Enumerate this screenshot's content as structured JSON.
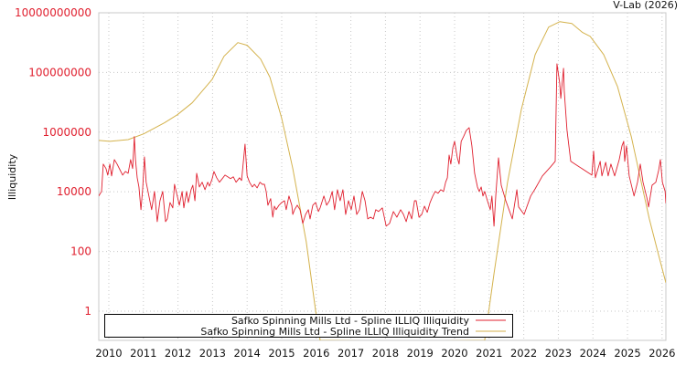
{
  "chart_data": {
    "type": "line",
    "title": "",
    "credit": "V-Lab (2026)",
    "xlabel": "",
    "ylabel": "Illiquidity",
    "y_scale": "log",
    "y_values_are_log10": true,
    "xlim": [
      2009.71,
      2026.11
    ],
    "ylim_log10": [
      -0.98,
      10
    ],
    "grid": true,
    "legend_position": "bottom-left",
    "x_ticks": [
      2010,
      2011,
      2012,
      2013,
      2014,
      2015,
      2016,
      2017,
      2018,
      2019,
      2020,
      2021,
      2022,
      2023,
      2024,
      2025,
      2026
    ],
    "y_ticks": [
      "10000000000",
      "100000000",
      "1000000",
      "10000",
      "100",
      "1"
    ],
    "colors": {
      "illiquidity": "#e0202f",
      "trend": "#d4b24c",
      "tick_label": "#e0202f"
    },
    "series": [
      {
        "name": "Safko Spinning Mills Ltd - Spline ILLIQ Illiquidity",
        "key": "illiquidity",
        "x": [
          2009.71,
          2009.79,
          2009.84,
          2009.92,
          2009.97,
          2010.03,
          2010.08,
          2010.16,
          2010.24,
          2010.32,
          2010.4,
          2010.48,
          2010.56,
          2010.63,
          2010.69,
          2010.74,
          2010.77,
          2010.82,
          2010.87,
          2010.93,
          2010.98,
          2011.03,
          2011.08,
          2011.16,
          2011.24,
          2011.32,
          2011.4,
          2011.48,
          2011.56,
          2011.64,
          2011.69,
          2011.77,
          2011.85,
          2011.9,
          2011.98,
          2012.04,
          2012.12,
          2012.17,
          2012.25,
          2012.3,
          2012.38,
          2012.43,
          2012.49,
          2012.54,
          2012.62,
          2012.7,
          2012.78,
          2012.86,
          2012.91,
          2012.99,
          2013.04,
          2013.12,
          2013.2,
          2013.28,
          2013.36,
          2013.44,
          2013.52,
          2013.6,
          2013.68,
          2013.78,
          2013.84,
          2013.94,
          2014.0,
          2014.07,
          2014.15,
          2014.21,
          2014.29,
          2014.37,
          2014.44,
          2014.5,
          2014.55,
          2014.6,
          2014.68,
          2014.74,
          2014.79,
          2014.84,
          2014.92,
          2015.0,
          2015.08,
          2015.13,
          2015.21,
          2015.29,
          2015.32,
          2015.37,
          2015.45,
          2015.53,
          2015.61,
          2015.69,
          2015.77,
          2015.82,
          2015.9,
          2015.98,
          2016.06,
          2016.11,
          2016.22,
          2016.3,
          2016.38,
          2016.46,
          2016.53,
          2016.61,
          2016.69,
          2016.77,
          2016.85,
          2016.93,
          2017.01,
          2017.09,
          2017.17,
          2017.25,
          2017.33,
          2017.41,
          2017.49,
          2017.57,
          2017.65,
          2017.72,
          2017.8,
          2017.91,
          2018.02,
          2018.12,
          2018.23,
          2018.33,
          2018.44,
          2018.52,
          2018.6,
          2018.68,
          2018.76,
          2018.84,
          2018.89,
          2018.97,
          2019.05,
          2019.13,
          2019.21,
          2019.29,
          2019.37,
          2019.44,
          2019.52,
          2019.6,
          2019.68,
          2019.74,
          2019.79,
          2019.84,
          2019.89,
          2019.95,
          2020.0,
          2020.08,
          2020.13,
          2020.19,
          2020.26,
          2020.34,
          2020.42,
          2020.5,
          2020.58,
          2020.66,
          2020.71,
          2020.77,
          2020.82,
          2020.87,
          2020.95,
          2021.03,
          2021.08,
          2021.14,
          2021.19,
          2021.27,
          2021.35,
          2021.48,
          2021.67,
          2021.8,
          2021.85,
          2022.01,
          2022.2,
          2022.33,
          2022.54,
          2022.78,
          2022.91,
          2022.96,
          2023.04,
          2023.07,
          2023.15,
          2023.17,
          2023.25,
          2023.36,
          2023.6,
          2023.97,
          2024.02,
          2024.07,
          2024.21,
          2024.26,
          2024.37,
          2024.44,
          2024.52,
          2024.63,
          2024.76,
          2024.84,
          2024.89,
          2024.92,
          2024.97,
          2025.05,
          2025.19,
          2025.29,
          2025.37,
          2025.45,
          2025.56,
          2025.61,
          2025.71,
          2025.82,
          2025.9,
          2025.95,
          2026.01,
          2026.09,
          2026.11
        ],
        "y": [
          3.86,
          4.01,
          4.93,
          4.78,
          4.56,
          4.93,
          4.53,
          5.08,
          4.93,
          4.74,
          4.56,
          4.68,
          4.62,
          5.08,
          4.78,
          5.85,
          5.08,
          4.47,
          4.16,
          3.4,
          4.1,
          5.17,
          4.32,
          3.86,
          3.4,
          4.01,
          3.0,
          3.7,
          4.01,
          3.0,
          3.09,
          3.64,
          3.46,
          4.25,
          3.86,
          3.55,
          4.01,
          3.46,
          4.01,
          3.64,
          4.07,
          4.22,
          3.7,
          4.62,
          4.16,
          4.32,
          4.07,
          4.32,
          4.19,
          4.44,
          4.68,
          4.47,
          4.32,
          4.44,
          4.56,
          4.5,
          4.44,
          4.5,
          4.32,
          4.47,
          4.38,
          5.6,
          4.53,
          4.32,
          4.16,
          4.25,
          4.13,
          4.32,
          4.25,
          4.25,
          4.01,
          3.55,
          3.77,
          3.15,
          3.52,
          3.4,
          3.55,
          3.64,
          3.7,
          3.4,
          3.86,
          3.55,
          3.24,
          3.4,
          3.55,
          3.4,
          2.94,
          3.24,
          3.4,
          3.09,
          3.55,
          3.64,
          3.34,
          3.46,
          3.86,
          3.55,
          3.7,
          4.01,
          3.4,
          4.07,
          3.7,
          4.07,
          3.24,
          3.7,
          3.4,
          3.86,
          3.24,
          3.4,
          4.01,
          3.7,
          3.09,
          3.15,
          3.09,
          3.4,
          3.34,
          3.46,
          2.85,
          2.94,
          3.34,
          3.15,
          3.4,
          3.24,
          3.0,
          3.34,
          3.09,
          3.7,
          3.7,
          3.15,
          3.24,
          3.52,
          3.31,
          3.64,
          3.86,
          4.01,
          3.95,
          4.07,
          4.01,
          4.32,
          4.47,
          5.23,
          4.93,
          5.48,
          5.69,
          5.14,
          4.93,
          5.69,
          5.85,
          6.06,
          6.15,
          5.54,
          4.62,
          4.16,
          4.01,
          4.16,
          3.86,
          4.01,
          3.7,
          3.4,
          3.86,
          2.85,
          3.86,
          5.14,
          4.22,
          3.7,
          3.09,
          4.07,
          3.49,
          3.24,
          3.86,
          4.1,
          4.53,
          4.84,
          5.02,
          8.29,
          7.65,
          7.13,
          8.14,
          7.38,
          6.06,
          5.02,
          4.84,
          4.56,
          5.36,
          4.47,
          5.02,
          4.53,
          4.99,
          4.53,
          4.93,
          4.53,
          5.08,
          5.54,
          5.69,
          5.02,
          5.54,
          4.53,
          3.86,
          4.32,
          4.93,
          4.32,
          3.8,
          3.49,
          4.22,
          4.32,
          4.72,
          5.08,
          4.32,
          4.01,
          3.61
        ]
      },
      {
        "name": "Safko Spinning Mills Ltd - Spline ILLIQ Illiquidity Trend",
        "key": "trend",
        "x": [
          2009.71,
          2010.03,
          2010.56,
          2011.01,
          2011.61,
          2011.98,
          2012.41,
          2012.99,
          2013.33,
          2013.73,
          2014.0,
          2014.39,
          2014.66,
          2015.0,
          2015.32,
          2015.71,
          2015.98,
          2016.11,
          2018.5,
          2020.87,
          2021.14,
          2021.53,
          2021.93,
          2022.33,
          2022.72,
          2023.04,
          2023.39,
          2023.7,
          2023.92,
          2024.31,
          2024.71,
          2025.11,
          2025.37,
          2025.63,
          2025.9,
          2026.11
        ],
        "y": [
          5.72,
          5.69,
          5.75,
          5.94,
          6.31,
          6.58,
          6.98,
          7.77,
          8.54,
          9.0,
          8.91,
          8.45,
          7.84,
          6.46,
          4.78,
          2.33,
          0.03,
          -0.98,
          -8,
          -0.98,
          1.26,
          4.32,
          6.76,
          8.6,
          9.52,
          9.7,
          9.64,
          9.34,
          9.21,
          8.6,
          7.53,
          5.85,
          4.47,
          3.09,
          1.87,
          0.95
        ]
      }
    ]
  }
}
